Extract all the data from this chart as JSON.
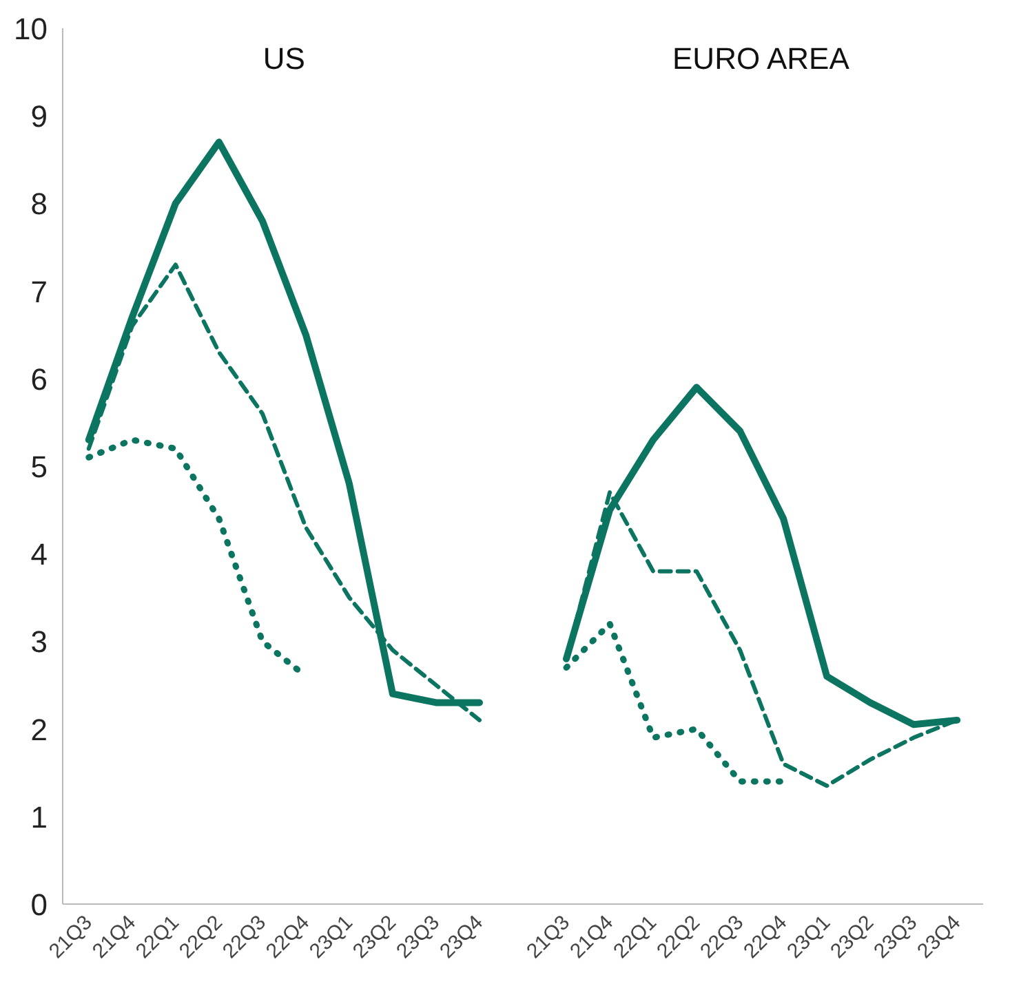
{
  "chart_data": {
    "type": "line",
    "categories": [
      "21Q3",
      "21Q4",
      "22Q1",
      "22Q2",
      "22Q3",
      "22Q4",
      "23Q1",
      "23Q2",
      "23Q3",
      "23Q4",
      null,
      "21Q3",
      "21Q4",
      "22Q1",
      "22Q2",
      "22Q3",
      "22Q4",
      "23Q1",
      "23Q2",
      "23Q3",
      "23Q4"
    ],
    "series": [
      {
        "color": "#0b7561",
        "line_style": "solid",
        "values": [
          5.3,
          6.7,
          8.0,
          8.7,
          7.8,
          6.5,
          4.8,
          2.4,
          2.3,
          2.3,
          null,
          2.8,
          4.5,
          5.3,
          5.9,
          5.4,
          4.4,
          2.6,
          2.3,
          2.05,
          2.1
        ]
      },
      {
        "color": "#0b7561",
        "line_style": "dashed",
        "values": [
          5.2,
          6.6,
          7.3,
          6.3,
          5.6,
          4.3,
          3.5,
          2.9,
          2.5,
          2.1,
          null,
          2.8,
          4.7,
          3.8,
          3.8,
          2.9,
          1.6,
          1.35,
          1.65,
          1.9,
          2.1
        ]
      },
      {
        "color": "#0b7561",
        "line_style": "dotted",
        "values": [
          5.1,
          5.3,
          5.2,
          4.4,
          3.0,
          2.6,
          null,
          null,
          null,
          null,
          null,
          2.7,
          3.2,
          1.9,
          2.0,
          1.4,
          1.4,
          null,
          null,
          null,
          null
        ]
      }
    ],
    "annotations": [
      "US",
      "EURO AREA"
    ],
    "ylim": [
      0,
      10
    ],
    "yticks": [
      0,
      1,
      2,
      3,
      4,
      5,
      6,
      7,
      8,
      9,
      10
    ],
    "grid": false,
    "marker": "none"
  }
}
